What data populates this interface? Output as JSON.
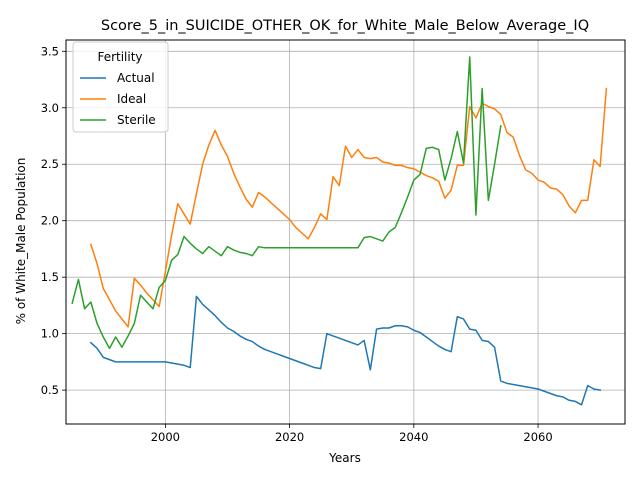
{
  "chart_data": {
    "type": "line",
    "title": "Score_5_in_SUICIDE_OTHER_OK_for_White_Male_Below_Average_IQ",
    "xlabel": "Years",
    "ylabel": "% of White_Male Population",
    "xlim": [
      1984,
      2074
    ],
    "ylim": [
      0.2,
      3.6
    ],
    "xticks": [
      2000,
      2020,
      2040,
      2060
    ],
    "yticks": [
      0.5,
      1.0,
      1.5,
      2.0,
      2.5,
      3.0,
      3.5
    ],
    "xtick_labels": [
      "2000",
      "2020",
      "2040",
      "2060"
    ],
    "ytick_labels": [
      "0.5",
      "1.0",
      "1.5",
      "2.0",
      "2.5",
      "3.0",
      "3.5"
    ],
    "grid": true,
    "legend": {
      "title": "Fertility",
      "placement": "top-left"
    },
    "series": [
      {
        "name": "Actual",
        "color": "#1f77b4",
        "points": [
          [
            1988,
            0.92
          ],
          [
            1989,
            0.87
          ],
          [
            1990,
            0.79
          ],
          [
            1991,
            0.77
          ],
          [
            1992,
            0.75
          ],
          [
            1993,
            0.75
          ],
          [
            1994,
            0.75
          ],
          [
            1995,
            0.75
          ],
          [
            1996,
            0.75
          ],
          [
            1997,
            0.75
          ],
          [
            1998,
            0.75
          ],
          [
            1999,
            0.75
          ],
          [
            2000,
            0.75
          ],
          [
            2001,
            0.74
          ],
          [
            2002,
            0.73
          ],
          [
            2003,
            0.72
          ],
          [
            2004,
            0.7
          ],
          [
            2005,
            1.33
          ],
          [
            2006,
            1.26
          ],
          [
            2007,
            1.21
          ],
          [
            2008,
            1.16
          ],
          [
            2009,
            1.1
          ],
          [
            2010,
            1.05
          ],
          [
            2011,
            1.02
          ],
          [
            2012,
            0.98
          ],
          [
            2013,
            0.95
          ],
          [
            2014,
            0.93
          ],
          [
            2015,
            0.89
          ],
          [
            2016,
            0.86
          ],
          [
            2017,
            0.84
          ],
          [
            2018,
            0.82
          ],
          [
            2019,
            0.8
          ],
          [
            2020,
            0.78
          ],
          [
            2021,
            0.76
          ],
          [
            2022,
            0.74
          ],
          [
            2023,
            0.72
          ],
          [
            2024,
            0.7
          ],
          [
            2025,
            0.69
          ],
          [
            2026,
            1.0
          ],
          [
            2027,
            0.98
          ],
          [
            2028,
            0.96
          ],
          [
            2029,
            0.94
          ],
          [
            2030,
            0.92
          ],
          [
            2031,
            0.9
          ],
          [
            2032,
            0.94
          ],
          [
            2033,
            0.68
          ],
          [
            2034,
            1.04
          ],
          [
            2035,
            1.05
          ],
          [
            2036,
            1.05
          ],
          [
            2037,
            1.07
          ],
          [
            2038,
            1.07
          ],
          [
            2039,
            1.06
          ],
          [
            2040,
            1.03
          ],
          [
            2041,
            1.01
          ],
          [
            2042,
            0.97
          ],
          [
            2043,
            0.93
          ],
          [
            2044,
            0.89
          ],
          [
            2045,
            0.86
          ],
          [
            2046,
            0.84
          ],
          [
            2047,
            1.15
          ],
          [
            2048,
            1.13
          ],
          [
            2049,
            1.04
          ],
          [
            2050,
            1.03
          ],
          [
            2051,
            0.94
          ],
          [
            2052,
            0.93
          ],
          [
            2053,
            0.88
          ],
          [
            2054,
            0.58
          ],
          [
            2055,
            0.56
          ],
          [
            2056,
            0.55
          ],
          [
            2057,
            0.54
          ],
          [
            2058,
            0.53
          ],
          [
            2059,
            0.52
          ],
          [
            2060,
            0.51
          ],
          [
            2061,
            0.49
          ],
          [
            2062,
            0.47
          ],
          [
            2063,
            0.45
          ],
          [
            2064,
            0.44
          ],
          [
            2065,
            0.41
          ],
          [
            2066,
            0.4
          ],
          [
            2067,
            0.37
          ],
          [
            2068,
            0.54
          ],
          [
            2069,
            0.51
          ],
          [
            2070,
            0.5
          ]
        ]
      },
      {
        "name": "Ideal",
        "color": "#ff7f0e",
        "points": [
          [
            1988,
            1.79
          ],
          [
            1989,
            1.62
          ],
          [
            1990,
            1.4
          ],
          [
            1991,
            1.3
          ],
          [
            1992,
            1.2
          ],
          [
            1993,
            1.13
          ],
          [
            1994,
            1.06
          ],
          [
            1995,
            1.49
          ],
          [
            1996,
            1.43
          ],
          [
            1997,
            1.36
          ],
          [
            1998,
            1.3
          ],
          [
            1999,
            1.24
          ],
          [
            2000,
            1.55
          ],
          [
            2001,
            1.87
          ],
          [
            2002,
            2.15
          ],
          [
            2003,
            2.06
          ],
          [
            2004,
            1.97
          ],
          [
            2005,
            2.24
          ],
          [
            2006,
            2.5
          ],
          [
            2007,
            2.67
          ],
          [
            2008,
            2.8
          ],
          [
            2009,
            2.67
          ],
          [
            2010,
            2.57
          ],
          [
            2011,
            2.42
          ],
          [
            2012,
            2.3
          ],
          [
            2013,
            2.19
          ],
          [
            2014,
            2.12
          ],
          [
            2015,
            2.25
          ],
          [
            2016,
            2.21
          ],
          [
            2017,
            2.16
          ],
          [
            2018,
            2.11
          ],
          [
            2019,
            2.06
          ],
          [
            2020,
            2.01
          ],
          [
            2021,
            1.94
          ],
          [
            2022,
            1.89
          ],
          [
            2023,
            1.84
          ],
          [
            2024,
            1.94
          ],
          [
            2025,
            2.06
          ],
          [
            2026,
            2.01
          ],
          [
            2027,
            2.39
          ],
          [
            2028,
            2.31
          ],
          [
            2029,
            2.66
          ],
          [
            2030,
            2.56
          ],
          [
            2031,
            2.63
          ],
          [
            2032,
            2.56
          ],
          [
            2033,
            2.55
          ],
          [
            2034,
            2.56
          ],
          [
            2035,
            2.52
          ],
          [
            2036,
            2.51
          ],
          [
            2037,
            2.49
          ],
          [
            2038,
            2.49
          ],
          [
            2039,
            2.47
          ],
          [
            2040,
            2.46
          ],
          [
            2041,
            2.43
          ],
          [
            2042,
            2.4
          ],
          [
            2043,
            2.38
          ],
          [
            2044,
            2.35
          ],
          [
            2045,
            2.2
          ],
          [
            2046,
            2.27
          ],
          [
            2047,
            2.49
          ],
          [
            2048,
            2.49
          ],
          [
            2049,
            3.01
          ],
          [
            2050,
            2.91
          ],
          [
            2051,
            3.04
          ],
          [
            2052,
            3.01
          ],
          [
            2053,
            2.99
          ],
          [
            2054,
            2.94
          ],
          [
            2055,
            2.78
          ],
          [
            2056,
            2.74
          ],
          [
            2057,
            2.58
          ],
          [
            2058,
            2.45
          ],
          [
            2059,
            2.42
          ],
          [
            2060,
            2.36
          ],
          [
            2061,
            2.34
          ],
          [
            2062,
            2.29
          ],
          [
            2063,
            2.28
          ],
          [
            2064,
            2.23
          ],
          [
            2065,
            2.13
          ],
          [
            2066,
            2.07
          ],
          [
            2067,
            2.18
          ],
          [
            2068,
            2.18
          ],
          [
            2069,
            2.54
          ],
          [
            2070,
            2.48
          ],
          [
            2071,
            3.17
          ]
        ]
      },
      {
        "name": "Sterile",
        "color": "#2ca02c",
        "points": [
          [
            1985,
            1.27
          ],
          [
            1986,
            1.48
          ],
          [
            1987,
            1.22
          ],
          [
            1988,
            1.28
          ],
          [
            1989,
            1.09
          ],
          [
            1990,
            0.97
          ],
          [
            1991,
            0.87
          ],
          [
            1992,
            0.97
          ],
          [
            1993,
            0.88
          ],
          [
            1994,
            0.98
          ],
          [
            1995,
            1.09
          ],
          [
            1996,
            1.34
          ],
          [
            1997,
            1.28
          ],
          [
            1998,
            1.22
          ],
          [
            1999,
            1.41
          ],
          [
            2000,
            1.47
          ],
          [
            2001,
            1.65
          ],
          [
            2002,
            1.7
          ],
          [
            2003,
            1.86
          ],
          [
            2004,
            1.8
          ],
          [
            2005,
            1.75
          ],
          [
            2006,
            1.71
          ],
          [
            2007,
            1.77
          ],
          [
            2008,
            1.73
          ],
          [
            2009,
            1.69
          ],
          [
            2010,
            1.77
          ],
          [
            2011,
            1.74
          ],
          [
            2012,
            1.72
          ],
          [
            2013,
            1.71
          ],
          [
            2014,
            1.69
          ],
          [
            2015,
            1.77
          ],
          [
            2016,
            1.76
          ],
          [
            2017,
            1.76
          ],
          [
            2018,
            1.76
          ],
          [
            2019,
            1.76
          ],
          [
            2020,
            1.76
          ],
          [
            2021,
            1.76
          ],
          [
            2022,
            1.76
          ],
          [
            2023,
            1.76
          ],
          [
            2024,
            1.76
          ],
          [
            2025,
            1.76
          ],
          [
            2026,
            1.76
          ],
          [
            2027,
            1.76
          ],
          [
            2028,
            1.76
          ],
          [
            2029,
            1.76
          ],
          [
            2030,
            1.76
          ],
          [
            2031,
            1.76
          ],
          [
            2032,
            1.85
          ],
          [
            2033,
            1.86
          ],
          [
            2034,
            1.84
          ],
          [
            2035,
            1.82
          ],
          [
            2036,
            1.9
          ],
          [
            2037,
            1.94
          ],
          [
            2038,
            2.07
          ],
          [
            2039,
            2.21
          ],
          [
            2040,
            2.36
          ],
          [
            2041,
            2.41
          ],
          [
            2042,
            2.64
          ],
          [
            2043,
            2.65
          ],
          [
            2044,
            2.63
          ],
          [
            2045,
            2.36
          ],
          [
            2046,
            2.55
          ],
          [
            2047,
            2.79
          ],
          [
            2048,
            2.51
          ],
          [
            2049,
            3.45
          ],
          [
            2050,
            2.05
          ],
          [
            2051,
            3.17
          ],
          [
            2052,
            2.18
          ],
          [
            2053,
            2.5
          ],
          [
            2054,
            2.84
          ]
        ]
      }
    ]
  }
}
